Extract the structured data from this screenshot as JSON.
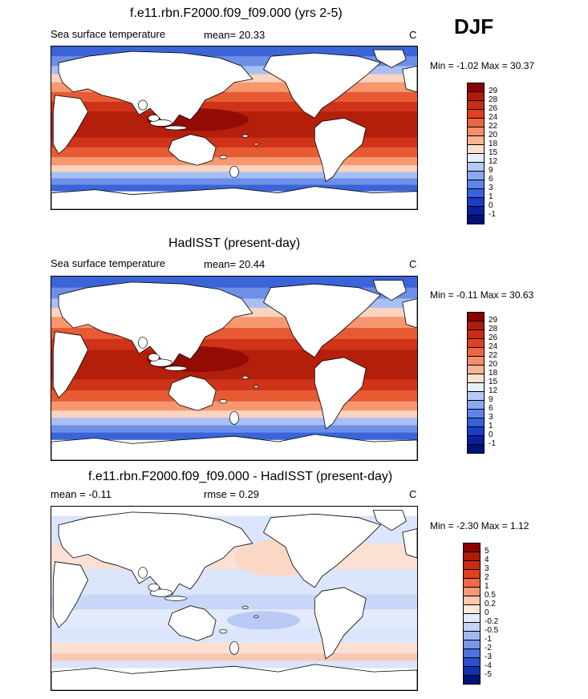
{
  "season": "DJF",
  "panels": [
    {
      "title": "f.e11.rbn.F2000.f09_f09.000 (yrs 2-5)",
      "left_label": "Sea surface temperature",
      "stat1": "mean=  20.33",
      "stat2": "",
      "units": "C",
      "minmax": "Min =  -1.02 Max =  30.37",
      "kind": "abs",
      "colorbar": {
        "labels": [
          "29",
          "28",
          "26",
          "24",
          "22",
          "20",
          "18",
          "15",
          "12",
          "9",
          "6",
          "3",
          "1",
          "0",
          "-1"
        ],
        "colors": [
          "#8b0000",
          "#b01a0a",
          "#cc2a12",
          "#e0401e",
          "#ee6640",
          "#f58e6a",
          "#fab597",
          "#fde0cf",
          "#e8eefc",
          "#b7c9f7",
          "#8ba7f0",
          "#5f84e8",
          "#3762dd",
          "#1a3ec6",
          "#0a1f9c",
          "#00127a"
        ]
      }
    },
    {
      "title": "HadISST (present-day)",
      "left_label": "Sea surface temperature",
      "stat1": "mean=  20.44",
      "stat2": "",
      "units": "C",
      "minmax": "Min =  -0.11 Max =  30.63",
      "kind": "abs",
      "colorbar": {
        "labels": [
          "29",
          "28",
          "26",
          "24",
          "22",
          "20",
          "18",
          "15",
          "12",
          "9",
          "6",
          "3",
          "1",
          "0",
          "-1"
        ],
        "colors": [
          "#8b0000",
          "#b01a0a",
          "#cc2a12",
          "#e0401e",
          "#ee6640",
          "#f58e6a",
          "#fab597",
          "#fde0cf",
          "#e8eefc",
          "#b7c9f7",
          "#8ba7f0",
          "#5f84e8",
          "#3762dd",
          "#1a3ec6",
          "#0a1f9c",
          "#00127a"
        ]
      }
    },
    {
      "title": "f.e11.rbn.F2000.f09_f09.000 - HadISST (present-day)",
      "left_label": "mean =  -0.11",
      "stat1": "",
      "stat2": "rmse =   0.29",
      "units": "C",
      "minmax": "Min =  -2.30 Max =   1.12",
      "kind": "diff",
      "colorbar": {
        "labels": [
          "5",
          "4",
          "3",
          "2",
          "1",
          "0.5",
          "0.2",
          "0",
          "-0.2",
          "-0.5",
          "-1",
          "-2",
          "-3",
          "-4",
          "-5"
        ],
        "colors": [
          "#8b0000",
          "#b01a0a",
          "#cc2a12",
          "#e0401e",
          "#f06a48",
          "#f89878",
          "#fcc6b0",
          "#fde6dc",
          "#e2ebfc",
          "#c3d4f7",
          "#9fb8f2",
          "#7596ea",
          "#4c72e0",
          "#2a50d0",
          "#1230b0",
          "#00127a"
        ]
      }
    }
  ]
}
